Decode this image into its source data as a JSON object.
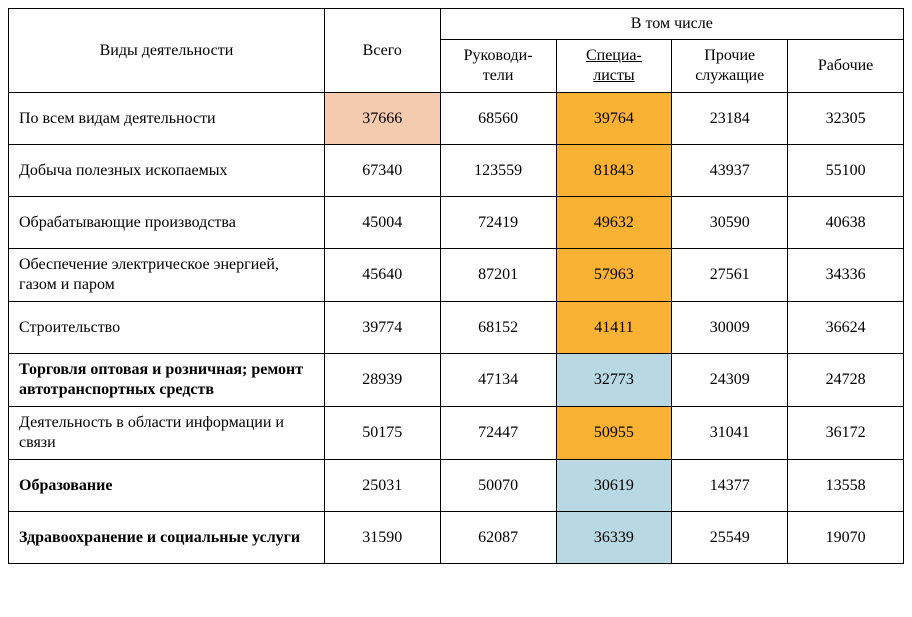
{
  "colors": {
    "highlight_peach": "#f5cbb0",
    "highlight_orange": "#f9b233",
    "highlight_blue": "#b8d8e3",
    "border": "#000000",
    "background": "#ffffff"
  },
  "table": {
    "header": {
      "activity_types": "Виды деятельности",
      "total": "Всего",
      "including": "В том числе",
      "sub": {
        "managers_line1": "Руководи-",
        "managers_line2": "тели",
        "specialists_line1": "Специа-",
        "specialists_line2": "листы",
        "other_line1": "Прочие",
        "other_line2": "служащие",
        "workers": "Рабочие"
      }
    },
    "rows": [
      {
        "label": "По всем видам деятельности",
        "bold": false,
        "total": "37666",
        "total_highlight": "peach",
        "managers": "68560",
        "specialists": "39764",
        "specialists_highlight": "orange",
        "other": "23184",
        "workers": "32305"
      },
      {
        "label": "Добыча полезных ископаемых",
        "bold": false,
        "total": "67340",
        "managers": "123559",
        "specialists": "81843",
        "specialists_highlight": "orange",
        "other": "43937",
        "workers": "55100"
      },
      {
        "label": "Обрабатывающие производства",
        "bold": false,
        "total": "45004",
        "managers": "72419",
        "specialists": "49632",
        "specialists_highlight": "orange",
        "other": "30590",
        "workers": "40638"
      },
      {
        "label": "Обеспечение электрическое энергией, газом и паром",
        "bold": false,
        "total": "45640",
        "managers": "87201",
        "specialists": "57963",
        "specialists_highlight": "orange",
        "other": "27561",
        "workers": "34336"
      },
      {
        "label": "Строительство",
        "bold": false,
        "total": "39774",
        "managers": "68152",
        "specialists": "41411",
        "specialists_highlight": "orange",
        "other": "30009",
        "workers": "36624"
      },
      {
        "label": "Торговля оптовая и розничная; ремонт автотранспортных средств",
        "bold": true,
        "total": "28939",
        "managers": "47134",
        "specialists": "32773",
        "specialists_highlight": "blue",
        "other": "24309",
        "workers": "24728"
      },
      {
        "label": "Деятельность в области информации и связи",
        "bold": false,
        "total": "50175",
        "managers": "72447",
        "specialists": "50955",
        "specialists_highlight": "orange",
        "other": "31041",
        "workers": "36172"
      },
      {
        "label": "Образование",
        "bold": true,
        "total": "25031",
        "managers": "50070",
        "specialists": "30619",
        "specialists_highlight": "blue",
        "other": "14377",
        "workers": "13558"
      },
      {
        "label": "Здравоохранение и социальные услуги",
        "bold": true,
        "total": "31590",
        "managers": "62087",
        "specialists": "36339",
        "specialists_highlight": "blue",
        "other": "25549",
        "workers": "19070"
      }
    ]
  }
}
